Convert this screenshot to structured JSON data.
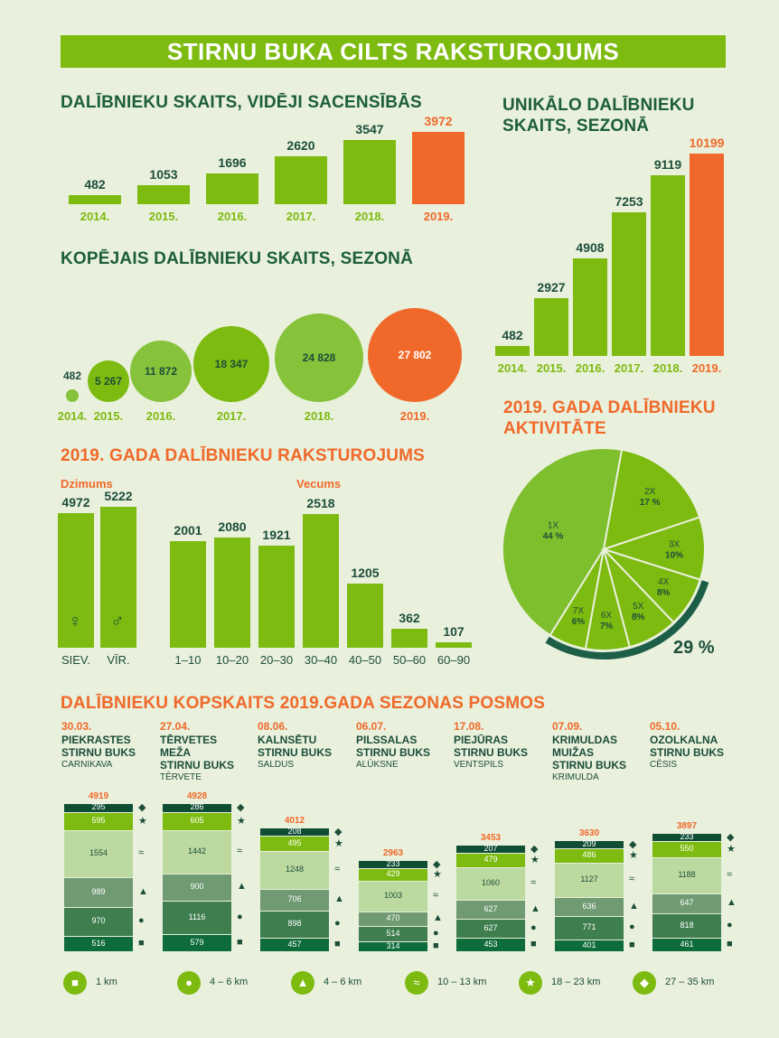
{
  "banner": "STIRNU BUKA CILTS RAKSTUROJUMS",
  "colors": {
    "green": "#7dbb10",
    "orange": "#f0692a",
    "dark": "#1c4e3a",
    "bg": "#e9f0dc"
  },
  "avg": {
    "title": "DALĪBNIEKU SKAITS, VIDĒJI SACENSĪBĀS",
    "chart_data": {
      "type": "bar",
      "categories": [
        "2014.",
        "2015.",
        "2016.",
        "2017.",
        "2018.",
        "2019."
      ],
      "values": [
        482,
        1053,
        1696,
        2620,
        3547,
        3972
      ],
      "ylim": [
        0,
        3972
      ]
    }
  },
  "unique": {
    "title_line1": "UNIKĀLO DALĪBNIEKU",
    "title_line2": "SKAITS, SEZONĀ",
    "chart_data": {
      "type": "bar",
      "categories": [
        "2014.",
        "2015.",
        "2016.",
        "2017.",
        "2018.",
        "2019."
      ],
      "values": [
        482,
        2927,
        4908,
        7253,
        9119,
        10199
      ],
      "ylim": [
        0,
        10199
      ]
    }
  },
  "total": {
    "title": "KOPĒJAIS DALĪBNIEKU SKAITS, SEZONĀ",
    "chart_data": {
      "type": "bubble",
      "categories": [
        "2014.",
        "2015.",
        "2016.",
        "2017.",
        "2018.",
        "2019."
      ],
      "values": [
        482,
        5267,
        11872,
        18347,
        24828,
        27802
      ],
      "labels": [
        "482",
        "5 267",
        "11 872",
        "18 347",
        "24 828",
        "27 802"
      ]
    }
  },
  "profile": {
    "title": "2019. GADA DALĪBNIEKU RAKSTUROJUMS",
    "gender_label": "Dzimums",
    "age_label": "Vecums",
    "gender": {
      "type": "bar",
      "categories": [
        "SIEV.",
        "VĪR."
      ],
      "values": [
        4972,
        5222
      ]
    },
    "age": {
      "type": "bar",
      "categories": [
        "1–10",
        "10–20",
        "20–30",
        "30–40",
        "40–50",
        "50–60",
        "60–90"
      ],
      "values": [
        2001,
        2080,
        1921,
        2518,
        1205,
        362,
        107
      ]
    }
  },
  "activity": {
    "title_line1": "2019. GADA DALĪBNIEKU",
    "title_line2": "AKTIVITĀTE",
    "highlight": "29 %",
    "chart_data": {
      "type": "pie",
      "slices": [
        {
          "label": "1X",
          "pct": "44 %",
          "value": 44
        },
        {
          "label": "2X",
          "pct": "17 %",
          "value": 17
        },
        {
          "label": "3X",
          "pct": "10%",
          "value": 10
        },
        {
          "label": "4X",
          "pct": "8%",
          "value": 8
        },
        {
          "label": "5X",
          "pct": "8%",
          "value": 8
        },
        {
          "label": "6X",
          "pct": "7%",
          "value": 7
        },
        {
          "label": "7X",
          "pct": "6%",
          "value": 6
        }
      ]
    }
  },
  "stages": {
    "title": "DALĪBNIEKU KOPSKAITS 2019.GADA SEZONAS POSMOS",
    "chart_data": {
      "type": "stacked-bar",
      "series_order_bottom_to_top": [
        "1 km",
        "4 – 6 km",
        "4 – 6 km",
        "10 – 13 km",
        "18 – 23 km",
        "27 – 35 km"
      ],
      "items": [
        {
          "date": "30.03.",
          "name": [
            "PIEKRASTES",
            "STIRNU BUKS"
          ],
          "place": "CARNIKAVA",
          "total": 4919,
          "values": [
            516,
            970,
            989,
            1554,
            595,
            295
          ]
        },
        {
          "date": "27.04.",
          "name": [
            "TĒRVETES",
            "MEŽA",
            "STIRNU BUKS"
          ],
          "place": "TĒRVETE",
          "total": 4928,
          "values": [
            579,
            1116,
            900,
            1442,
            605,
            286
          ]
        },
        {
          "date": "08.06.",
          "name": [
            "KALNSĒTU",
            "STIRNU BUKS"
          ],
          "place": "SALDUS",
          "total": 4012,
          "values": [
            457,
            898,
            706,
            1248,
            495,
            208
          ]
        },
        {
          "date": "06.07.",
          "name": [
            "PILSSALAS",
            "STIRNU BUKS"
          ],
          "place": "ALŪKSNE",
          "total": 2963,
          "values": [
            314,
            514,
            470,
            1003,
            429,
            233
          ]
        },
        {
          "date": "17.08.",
          "name": [
            "PIEJŪRAS",
            "STIRNU BUKS"
          ],
          "place": "VENTSPILS",
          "total": 3453,
          "values": [
            453,
            627,
            627,
            1060,
            479,
            207
          ]
        },
        {
          "date": "07.09.",
          "name": [
            "KRIMULDAS",
            "MUIŽAS",
            "STIRNU BUKS"
          ],
          "place": "KRIMULDA",
          "total": 3630,
          "values": [
            401,
            771,
            636,
            1127,
            486,
            209
          ]
        },
        {
          "date": "05.10.",
          "name": [
            "OZOLKALNA",
            "STIRNU BUKS"
          ],
          "place": "CĒSIS",
          "total": 3897,
          "values": [
            461,
            818,
            647,
            1188,
            550,
            233
          ]
        }
      ]
    },
    "legend": [
      {
        "icon": "rat-icon",
        "label": "1 km"
      },
      {
        "icon": "squirrel-icon",
        "label": "4 – 6 km"
      },
      {
        "icon": "runner-icon",
        "label": "4 – 6 km"
      },
      {
        "icon": "hare-icon",
        "label": "10 – 13 km"
      },
      {
        "icon": "deer-icon",
        "label": "18 – 23 km"
      },
      {
        "icon": "bear-icon",
        "label": "27 – 35 km"
      }
    ]
  }
}
